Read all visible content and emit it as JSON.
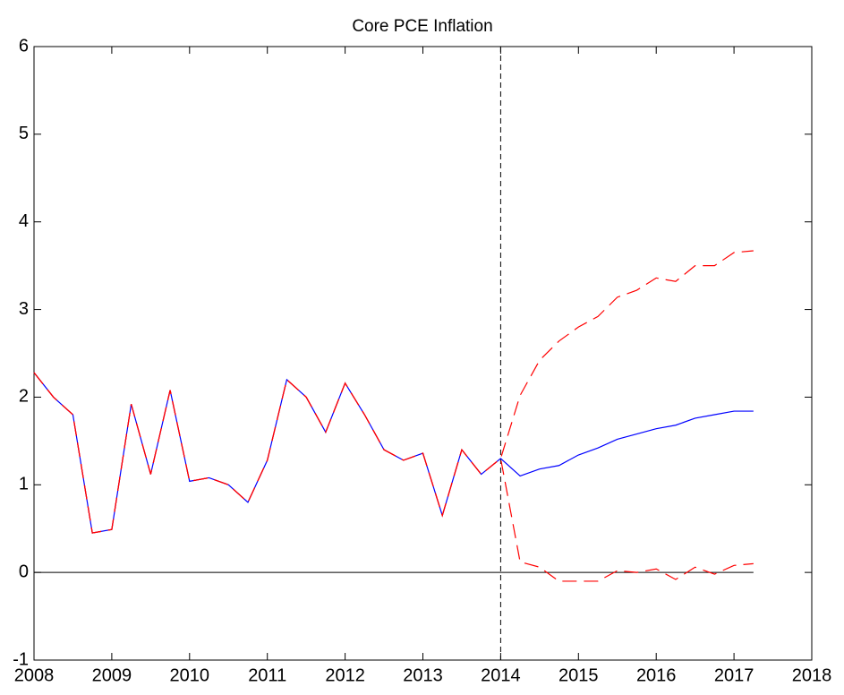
{
  "chart_data": {
    "type": "line",
    "title": "Core PCE Inflation",
    "x": [
      2008,
      2008.25,
      2008.5,
      2008.75,
      2009,
      2009.25,
      2009.5,
      2009.75,
      2010,
      2010.25,
      2010.5,
      2010.75,
      2011,
      2011.25,
      2011.5,
      2011.75,
      2012,
      2012.25,
      2012.5,
      2012.75,
      2013,
      2013.25,
      2013.5,
      2013.75,
      2014,
      2014.25,
      2014.5,
      2014.75,
      2015,
      2015.25,
      2015.5,
      2015.75,
      2016,
      2016.25,
      2016.5,
      2016.75,
      2017,
      2017.25
    ],
    "series": [
      {
        "color": "#0000ff",
        "dash": false,
        "values": [
          2.28,
          2.0,
          1.8,
          0.45,
          0.49,
          1.92,
          1.12,
          2.08,
          1.04,
          1.08,
          1.0,
          0.8,
          1.28,
          2.2,
          2.0,
          1.6,
          2.16,
          1.8,
          1.4,
          1.28,
          1.36,
          0.65,
          1.4,
          1.12,
          1.3,
          1.1,
          1.18,
          1.22,
          1.34,
          1.42,
          1.52,
          1.58,
          1.64,
          1.68,
          1.76,
          1.8,
          1.84,
          1.84
        ]
      },
      {
        "color": "#ff0000",
        "dash": true,
        "values": [
          2.28,
          2.0,
          1.8,
          0.45,
          0.49,
          1.92,
          1.12,
          2.08,
          1.04,
          1.08,
          1.0,
          0.8,
          1.28,
          2.2,
          2.0,
          1.6,
          2.16,
          1.8,
          1.4,
          1.28,
          1.36,
          0.65,
          1.4,
          1.12,
          1.3,
          2.02,
          2.42,
          2.64,
          2.8,
          2.92,
          3.14,
          3.22,
          3.36,
          3.32,
          3.5,
          3.5,
          3.65,
          3.67
        ]
      },
      {
        "color": "#ff0000",
        "dash": true,
        "values": [
          2.28,
          2.0,
          1.8,
          0.45,
          0.49,
          1.92,
          1.12,
          2.08,
          1.04,
          1.08,
          1.0,
          0.8,
          1.28,
          2.2,
          2.0,
          1.6,
          2.16,
          1.8,
          1.4,
          1.28,
          1.36,
          0.65,
          1.4,
          1.12,
          1.3,
          0.12,
          0.06,
          -0.1,
          -0.1,
          -0.1,
          0.02,
          0.0,
          0.04,
          -0.08,
          0.06,
          -0.02,
          0.08,
          0.1
        ]
      }
    ],
    "xlim": [
      2008,
      2018
    ],
    "xticks": [
      2008,
      2009,
      2010,
      2011,
      2012,
      2013,
      2014,
      2015,
      2016,
      2017,
      2018
    ],
    "ylim": [
      -1,
      6
    ],
    "yticks": [
      -1,
      0,
      1,
      2,
      3,
      4,
      5,
      6
    ],
    "hline": 0,
    "vline": 2014,
    "grid": false
  }
}
